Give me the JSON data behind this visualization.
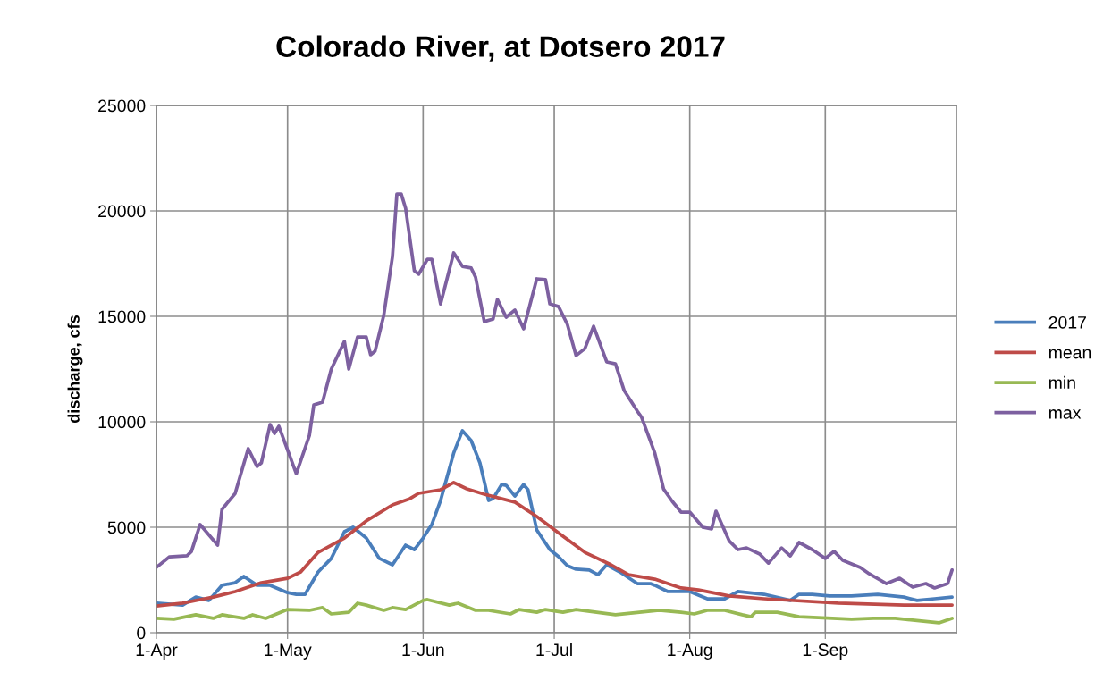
{
  "chart_data": {
    "type": "line",
    "title": "Colorado River, at Dotsero 2017",
    "ylabel": "discharge, cfs",
    "xlim": [
      "2017-04-01",
      "2017-10-01"
    ],
    "xticks": [
      {
        "value": "2017-04-01",
        "label": "1-Apr"
      },
      {
        "value": "2017-05-01",
        "label": "1-May"
      },
      {
        "value": "2017-06-01",
        "label": "1-Jun"
      },
      {
        "value": "2017-07-01",
        "label": "1-Jul"
      },
      {
        "value": "2017-08-01",
        "label": "1-Aug"
      },
      {
        "value": "2017-09-01",
        "label": "1-Sep"
      }
    ],
    "ylim": [
      0,
      25000
    ],
    "yticks": [
      0,
      5000,
      10000,
      15000,
      20000,
      25000
    ],
    "grid": true,
    "legend": "right",
    "series": [
      {
        "name": "2017",
        "color": "#4a7ebb",
        "x": [
          "2017-04-01",
          "2017-04-07",
          "2017-04-10",
          "2017-04-13",
          "2017-04-16",
          "2017-04-19",
          "2017-04-21",
          "2017-04-24",
          "2017-04-27",
          "2017-05-01",
          "2017-05-03",
          "2017-05-05",
          "2017-05-08",
          "2017-05-11",
          "2017-05-14",
          "2017-05-16",
          "2017-05-19",
          "2017-05-22",
          "2017-05-25",
          "2017-05-28",
          "2017-05-30",
          "2017-06-01",
          "2017-06-03",
          "2017-06-05",
          "2017-06-08",
          "2017-06-10",
          "2017-06-12",
          "2017-06-14",
          "2017-06-16",
          "2017-06-17",
          "2017-06-19",
          "2017-06-20",
          "2017-06-22",
          "2017-06-24",
          "2017-06-25",
          "2017-06-27",
          "2017-06-30",
          "2017-07-02",
          "2017-07-04",
          "2017-07-06",
          "2017-07-09",
          "2017-07-11",
          "2017-07-13",
          "2017-07-16",
          "2017-07-20",
          "2017-07-23",
          "2017-07-24",
          "2017-07-27",
          "2017-07-30",
          "2017-08-01",
          "2017-08-05",
          "2017-08-09",
          "2017-08-12",
          "2017-08-18",
          "2017-08-24",
          "2017-08-26",
          "2017-08-29",
          "2017-09-02",
          "2017-09-07",
          "2017-09-13",
          "2017-09-19",
          "2017-09-22",
          "2017-09-26",
          "2017-09-30"
        ],
        "values": [
          1400,
          1310,
          1690,
          1530,
          2250,
          2370,
          2670,
          2250,
          2250,
          1900,
          1820,
          1820,
          2880,
          3520,
          4790,
          5000,
          4490,
          3520,
          3220,
          4150,
          3940,
          4490,
          5130,
          6270,
          8520,
          9580,
          9110,
          8050,
          6270,
          6360,
          7030,
          6990,
          6480,
          7030,
          6780,
          4870,
          3940,
          3600,
          3180,
          3010,
          2970,
          2750,
          3220,
          2880,
          2330,
          2330,
          2250,
          1950,
          1950,
          1950,
          1610,
          1610,
          1950,
          1820,
          1530,
          1820,
          1820,
          1740,
          1740,
          1820,
          1690,
          1530,
          1610,
          1690
        ]
      },
      {
        "name": "mean",
        "color": "#be4b48",
        "x": [
          "2017-04-01",
          "2017-04-07",
          "2017-04-12",
          "2017-04-14",
          "2017-04-19",
          "2017-04-25",
          "2017-05-01",
          "2017-05-04",
          "2017-05-08",
          "2017-05-14",
          "2017-05-19",
          "2017-05-25",
          "2017-05-29",
          "2017-05-31",
          "2017-06-05",
          "2017-06-08",
          "2017-06-11",
          "2017-06-15",
          "2017-06-22",
          "2017-06-27",
          "2017-07-03",
          "2017-07-08",
          "2017-07-14",
          "2017-07-18",
          "2017-07-24",
          "2017-07-30",
          "2017-08-03",
          "2017-08-10",
          "2017-08-18",
          "2017-09-04",
          "2017-09-19",
          "2017-09-30"
        ],
        "values": [
          1270,
          1400,
          1610,
          1690,
          1950,
          2370,
          2580,
          2880,
          3810,
          4490,
          5300,
          6060,
          6360,
          6610,
          6780,
          7120,
          6820,
          6570,
          6190,
          5510,
          4580,
          3810,
          3220,
          2750,
          2540,
          2120,
          2030,
          1740,
          1610,
          1400,
          1310,
          1310
        ]
      },
      {
        "name": "min",
        "color": "#98b954",
        "x": [
          "2017-04-01",
          "2017-04-05",
          "2017-04-10",
          "2017-04-14",
          "2017-04-16",
          "2017-04-21",
          "2017-04-23",
          "2017-04-26",
          "2017-05-01",
          "2017-05-06",
          "2017-05-09",
          "2017-05-11",
          "2017-05-15",
          "2017-05-17",
          "2017-05-19",
          "2017-05-23",
          "2017-05-25",
          "2017-05-28",
          "2017-06-01",
          "2017-06-02",
          "2017-06-07",
          "2017-06-09",
          "2017-06-13",
          "2017-06-16",
          "2017-06-21",
          "2017-06-23",
          "2017-06-27",
          "2017-06-29",
          "2017-07-03",
          "2017-07-06",
          "2017-07-15",
          "2017-07-25",
          "2017-07-30",
          "2017-08-02",
          "2017-08-05",
          "2017-08-09",
          "2017-08-13",
          "2017-08-15",
          "2017-08-16",
          "2017-08-21",
          "2017-08-26",
          "2017-09-07",
          "2017-09-12",
          "2017-09-17",
          "2017-09-27",
          "2017-09-30"
        ],
        "values": [
          680,
          640,
          850,
          680,
          850,
          680,
          850,
          680,
          1100,
          1060,
          1190,
          890,
          970,
          1400,
          1310,
          1060,
          1190,
          1100,
          1530,
          1570,
          1310,
          1400,
          1060,
          1060,
          890,
          1100,
          970,
          1100,
          970,
          1100,
          850,
          1060,
          970,
          890,
          1060,
          1060,
          850,
          760,
          970,
          970,
          760,
          640,
          680,
          680,
          470,
          680
        ]
      },
      {
        "name": "max",
        "color": "#7d60a0",
        "x": [
          "2017-04-01",
          "2017-04-04",
          "2017-04-08",
          "2017-04-09",
          "2017-04-11",
          "2017-04-15",
          "2017-04-16",
          "2017-04-19",
          "2017-04-22",
          "2017-04-24",
          "2017-04-25",
          "2017-04-27",
          "2017-04-28",
          "2017-04-29",
          "2017-05-03",
          "2017-05-06",
          "2017-05-07",
          "2017-05-09",
          "2017-05-11",
          "2017-05-14",
          "2017-05-15",
          "2017-05-17",
          "2017-05-19",
          "2017-05-20",
          "2017-05-21",
          "2017-05-23",
          "2017-05-25",
          "2017-05-26",
          "2017-05-27",
          "2017-05-28",
          "2017-05-30",
          "2017-05-31",
          "2017-06-02",
          "2017-06-03",
          "2017-06-05",
          "2017-06-08",
          "2017-06-10",
          "2017-06-12",
          "2017-06-13",
          "2017-06-15",
          "2017-06-17",
          "2017-06-18",
          "2017-06-20",
          "2017-06-22",
          "2017-06-24",
          "2017-06-27",
          "2017-06-29",
          "2017-06-30",
          "2017-07-02",
          "2017-07-04",
          "2017-07-06",
          "2017-07-08",
          "2017-07-10",
          "2017-07-13",
          "2017-07-15",
          "2017-07-17",
          "2017-07-20",
          "2017-07-21",
          "2017-07-24",
          "2017-07-26",
          "2017-07-28",
          "2017-07-30",
          "2017-08-01",
          "2017-08-04",
          "2017-08-06",
          "2017-08-07",
          "2017-08-10",
          "2017-08-12",
          "2017-08-14",
          "2017-08-17",
          "2017-08-19",
          "2017-08-22",
          "2017-08-24",
          "2017-08-26",
          "2017-08-29",
          "2017-09-01",
          "2017-09-03",
          "2017-09-05",
          "2017-09-09",
          "2017-09-11",
          "2017-09-15",
          "2017-09-18",
          "2017-09-21",
          "2017-09-24",
          "2017-09-26",
          "2017-09-29",
          "2017-09-30"
        ],
        "values": [
          3100,
          3600,
          3650,
          3850,
          5130,
          4150,
          5850,
          6600,
          8730,
          7880,
          8050,
          9870,
          9450,
          9790,
          7540,
          9360,
          10800,
          10930,
          12500,
          13810,
          12500,
          14020,
          14020,
          13180,
          13350,
          15040,
          17840,
          20800,
          20800,
          20130,
          17160,
          17000,
          17710,
          17710,
          15590,
          18010,
          17370,
          17290,
          16860,
          14750,
          14870,
          15800,
          14960,
          15300,
          14410,
          16780,
          16740,
          15590,
          15460,
          14620,
          13140,
          13470,
          14530,
          12840,
          12750,
          11480,
          10510,
          10210,
          8520,
          6820,
          6230,
          5720,
          5720,
          5000,
          4920,
          5760,
          4360,
          3940,
          4020,
          3730,
          3300,
          4020,
          3640,
          4280,
          3940,
          3520,
          3860,
          3430,
          3090,
          2800,
          2330,
          2580,
          2160,
          2330,
          2120,
          2330,
          2970
        ]
      }
    ]
  }
}
